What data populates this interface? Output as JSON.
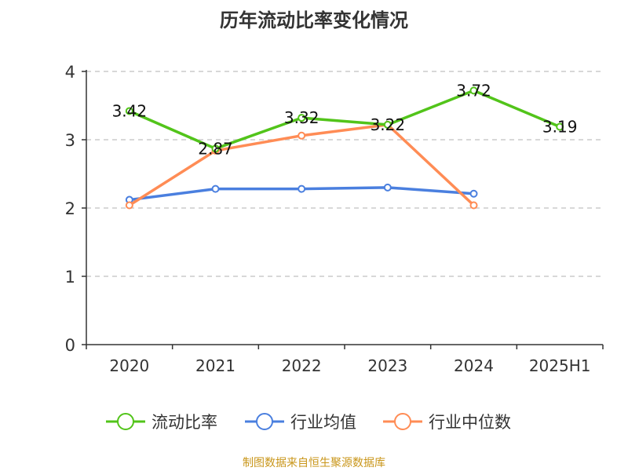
{
  "chart_data": {
    "type": "line",
    "title": "历年流动比率变化情况",
    "categories": [
      "2020",
      "2021",
      "2022",
      "2023",
      "2024",
      "2025H1"
    ],
    "ylim": [
      0,
      4
    ],
    "yticks": [
      0,
      1,
      2,
      3,
      4
    ],
    "grid": true,
    "legend_position": "bottom",
    "series": [
      {
        "name": "流动比率",
        "color": "#52c41a",
        "values": [
          3.42,
          2.87,
          3.32,
          3.22,
          3.72,
          3.19
        ],
        "labels": [
          "3.42",
          "2.87",
          "3.32",
          "3.22",
          "3.72",
          "3.19"
        ]
      },
      {
        "name": "行业均值",
        "color": "#4a7fdf",
        "values": [
          2.12,
          2.28,
          2.28,
          2.3,
          2.21,
          null
        ]
      },
      {
        "name": "行业中位数",
        "color": "#ff8c55",
        "values": [
          2.04,
          2.84,
          3.06,
          3.22,
          2.04,
          null
        ]
      }
    ]
  },
  "source": "制图数据来自恒生聚源数据库"
}
